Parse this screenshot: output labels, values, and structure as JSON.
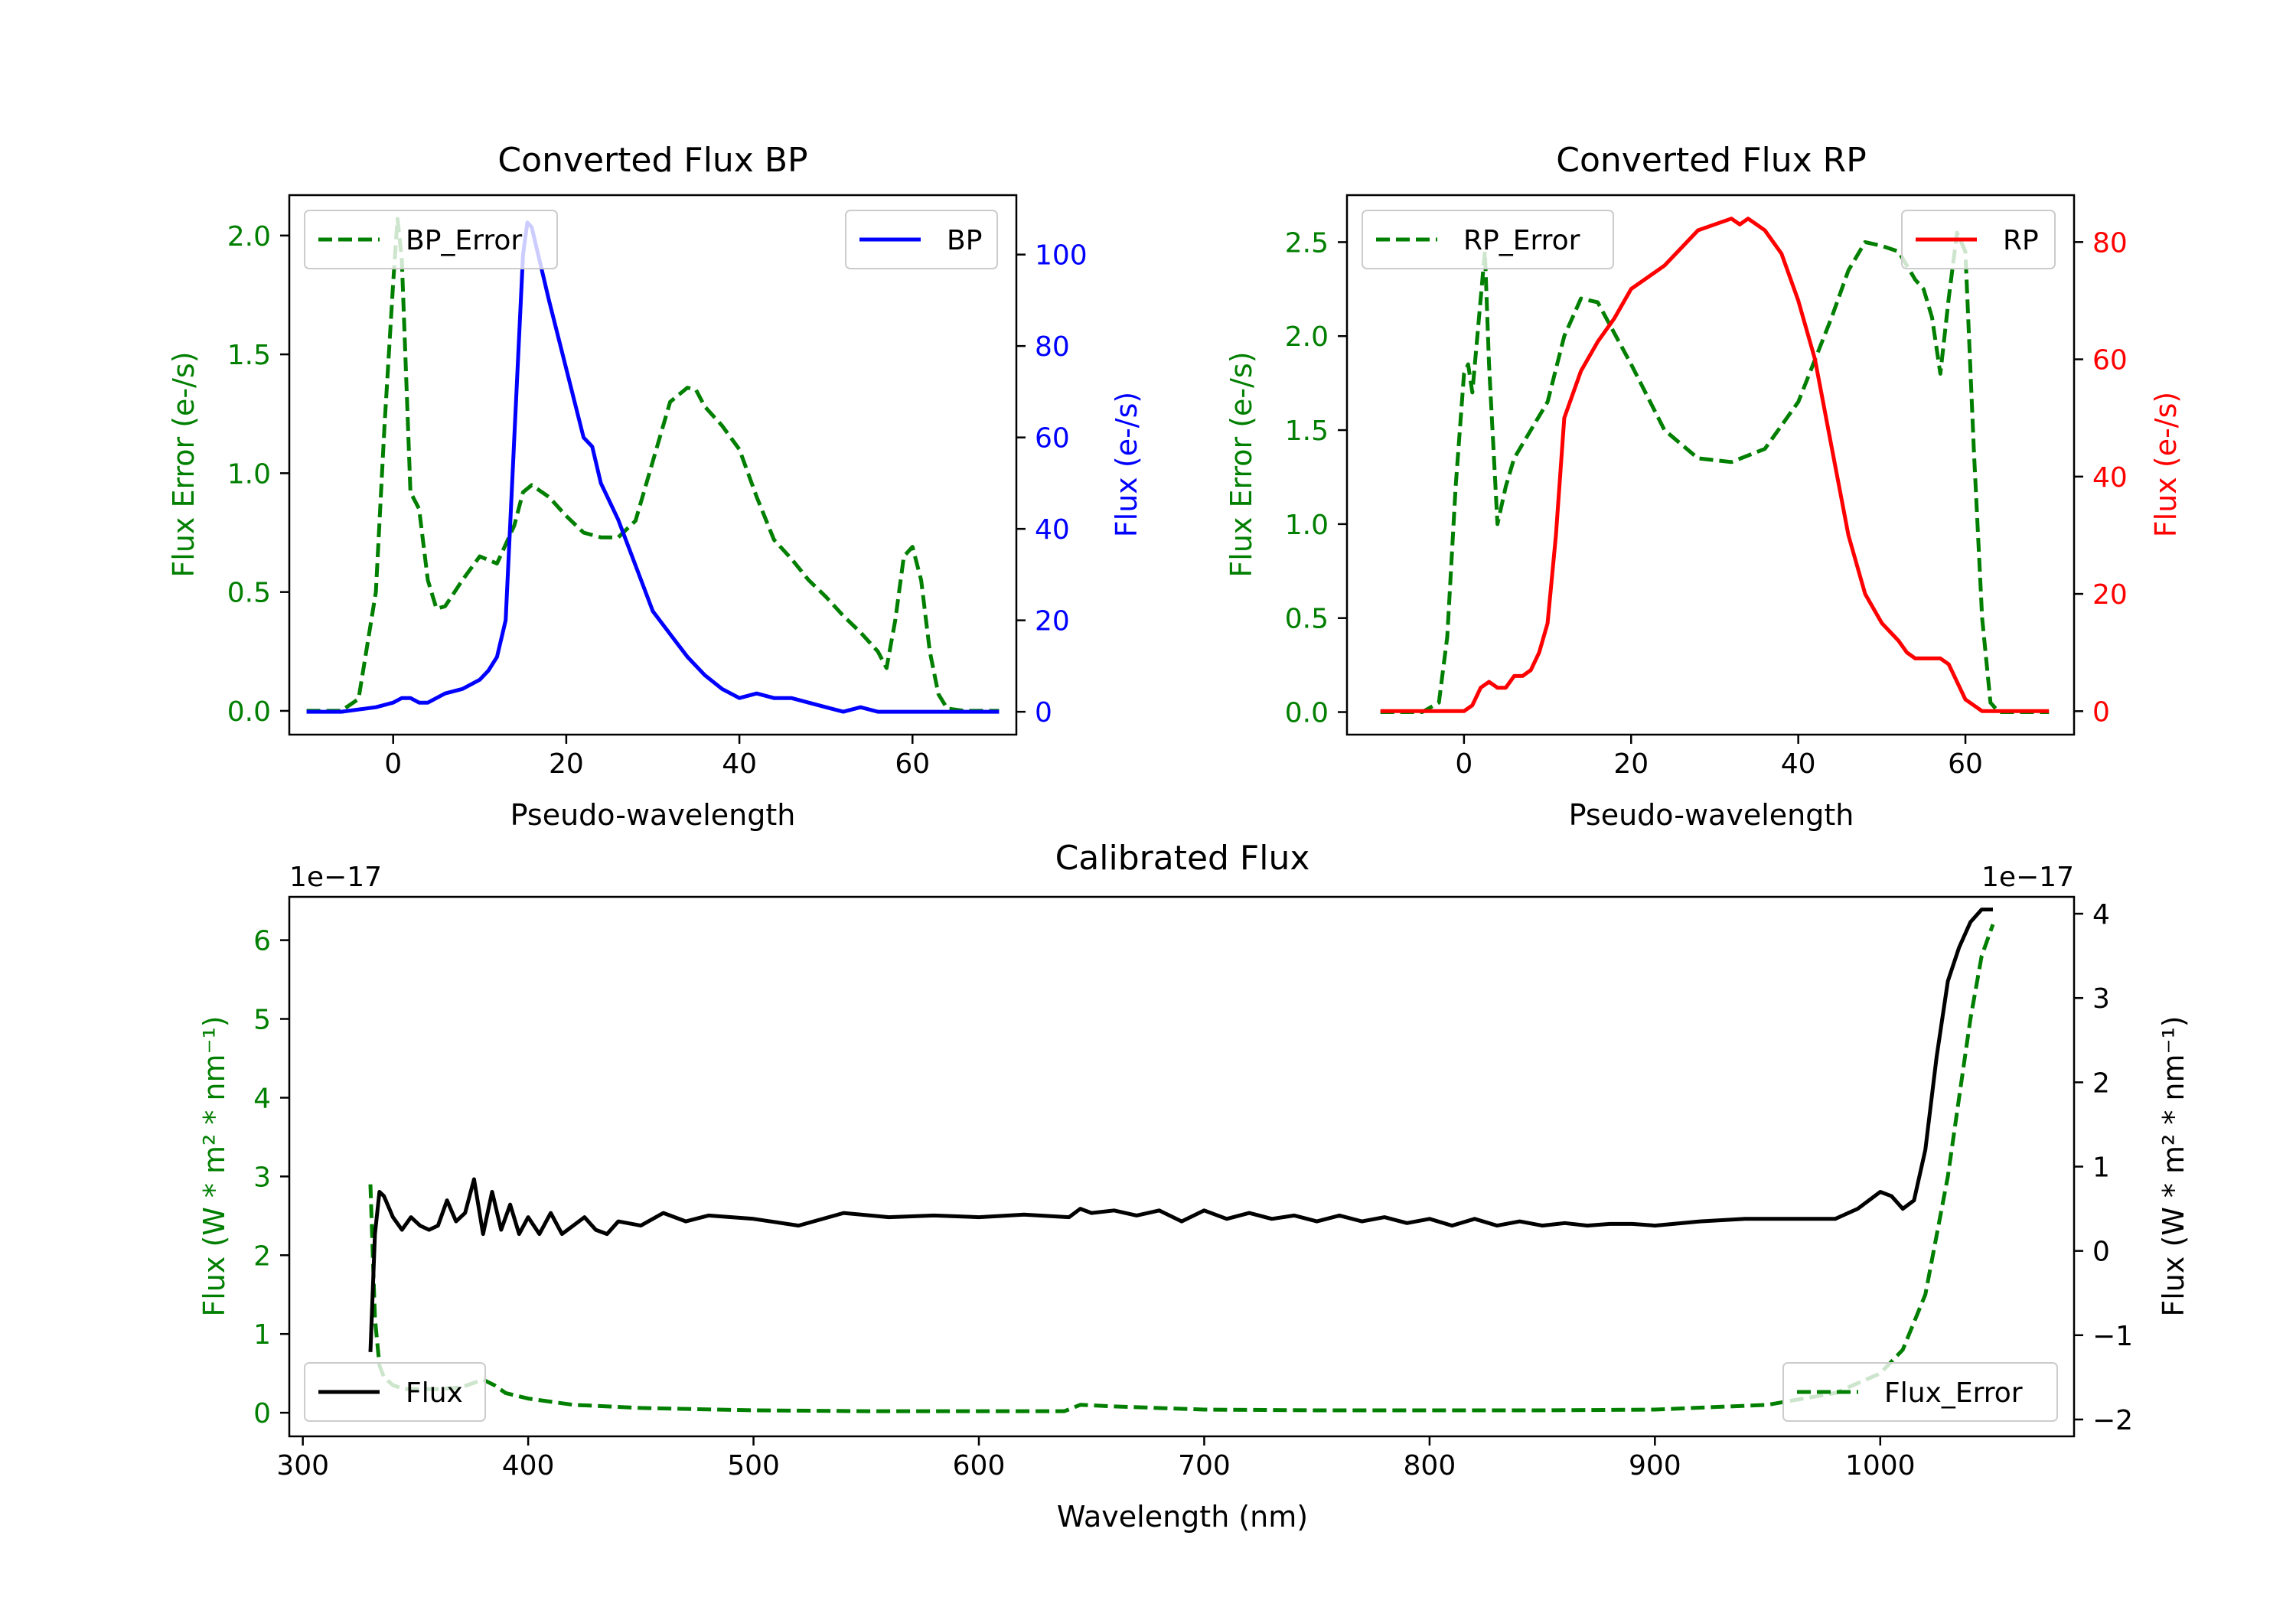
{
  "colors": {
    "green": "#007f00",
    "blue": "#0000ff",
    "red": "#ff0000",
    "black": "#000000"
  },
  "chart_data": [
    {
      "id": "bp",
      "type": "line",
      "title": "Converted Flux BP",
      "xlabel": "Pseudo-wavelength",
      "ylabel_left": "Flux Error (e-/s)",
      "ylabel_right": "Flux (e-/s)",
      "xlim": [
        -12,
        72
      ],
      "ylim_left": [
        -0.1,
        2.17
      ],
      "ylim_right": [
        -5,
        113
      ],
      "xticks": [
        0,
        20,
        40,
        60
      ],
      "yticks_left": [
        0.0,
        0.5,
        1.0,
        1.5,
        2.0
      ],
      "yticks_left_labels": [
        "0.0",
        "0.5",
        "1.0",
        "1.5",
        "2.0"
      ],
      "yticks_right": [
        0,
        20,
        40,
        60,
        80,
        100
      ],
      "legend_left": "BP_Error",
      "legend_right": "BP",
      "series": [
        {
          "name": "BP_Error",
          "axis": "left",
          "color": "#007f00",
          "dash": true,
          "x": [
            -10,
            -6,
            -4,
            -2,
            -1,
            0,
            0.5,
            1,
            2,
            3,
            4,
            5,
            6,
            8,
            10,
            12,
            14,
            15,
            16,
            18,
            20,
            22,
            24,
            26,
            28,
            30,
            32,
            34,
            35,
            36,
            38,
            40,
            42,
            44,
            46,
            48,
            50,
            52,
            54,
            56,
            57,
            58,
            59,
            60,
            61,
            62,
            63,
            64,
            66,
            68,
            70
          ],
          "y": [
            0.0,
            0.0,
            0.05,
            0.5,
            1.2,
            1.8,
            2.07,
            1.9,
            0.92,
            0.85,
            0.55,
            0.43,
            0.44,
            0.55,
            0.65,
            0.62,
            0.78,
            0.92,
            0.95,
            0.9,
            0.82,
            0.75,
            0.73,
            0.73,
            0.8,
            1.05,
            1.3,
            1.36,
            1.35,
            1.28,
            1.2,
            1.1,
            0.9,
            0.72,
            0.64,
            0.55,
            0.48,
            0.4,
            0.33,
            0.25,
            0.18,
            0.38,
            0.65,
            0.69,
            0.55,
            0.25,
            0.07,
            0.01,
            0.0,
            0.0,
            0.0
          ]
        },
        {
          "name": "BP",
          "axis": "right",
          "color": "#0000ff",
          "dash": false,
          "x": [
            -10,
            -6,
            -2,
            0,
            1,
            2,
            3,
            4,
            6,
            8,
            10,
            11,
            12,
            13,
            14,
            15,
            15.5,
            16,
            17,
            18,
            20,
            22,
            23,
            24,
            26,
            28,
            30,
            32,
            34,
            36,
            38,
            40,
            42,
            44,
            46,
            48,
            50,
            52,
            54,
            56,
            58,
            60,
            62,
            64,
            66,
            68,
            70
          ],
          "y": [
            0,
            0,
            1,
            2,
            3,
            3,
            2,
            2,
            4,
            5,
            7,
            9,
            12,
            20,
            60,
            100,
            107,
            106,
            98,
            90,
            75,
            60,
            58,
            50,
            42,
            32,
            22,
            17,
            12,
            8,
            5,
            3,
            4,
            3,
            3,
            2,
            1,
            0,
            1,
            0,
            0,
            0,
            0,
            0,
            0,
            0,
            0
          ]
        }
      ]
    },
    {
      "id": "rp",
      "type": "line",
      "title": "Converted Flux RP",
      "xlabel": "Pseudo-wavelength",
      "ylabel_left": "Flux Error (e-/s)",
      "ylabel_right": "Flux (e-/s)",
      "xlim": [
        -14,
        73
      ],
      "ylim_left": [
        -0.12,
        2.75
      ],
      "ylim_right": [
        -4,
        88
      ],
      "xticks": [
        0,
        20,
        40,
        60
      ],
      "yticks_left": [
        0.0,
        0.5,
        1.0,
        1.5,
        2.0,
        2.5
      ],
      "yticks_left_labels": [
        "0.0",
        "0.5",
        "1.0",
        "1.5",
        "2.0",
        "2.5"
      ],
      "yticks_right": [
        0,
        20,
        40,
        60,
        80
      ],
      "legend_left": "RP_Error",
      "legend_right": "RP",
      "series": [
        {
          "name": "RP_Error",
          "axis": "left",
          "color": "#007f00",
          "dash": true,
          "x": [
            -10,
            -5,
            -3,
            -2,
            -1,
            0,
            0.5,
            1,
            2,
            2.5,
            3,
            4,
            5,
            6,
            8,
            10,
            12,
            14,
            16,
            20,
            24,
            28,
            32,
            36,
            40,
            44,
            46,
            48,
            50,
            52,
            54,
            55,
            56,
            57,
            58,
            59,
            60,
            61,
            62,
            63,
            64,
            66,
            68,
            70
          ],
          "y": [
            0.0,
            0.0,
            0.05,
            0.4,
            1.2,
            1.8,
            1.85,
            1.7,
            2.2,
            2.45,
            1.85,
            1.0,
            1.2,
            1.35,
            1.5,
            1.65,
            2.0,
            2.2,
            2.18,
            1.85,
            1.5,
            1.35,
            1.33,
            1.4,
            1.65,
            2.1,
            2.35,
            2.5,
            2.48,
            2.45,
            2.3,
            2.25,
            2.1,
            1.8,
            2.2,
            2.55,
            2.45,
            1.4,
            0.5,
            0.05,
            0.0,
            0.0,
            0.0,
            0.0
          ]
        },
        {
          "name": "RP",
          "axis": "right",
          "color": "#ff0000",
          "dash": false,
          "x": [
            -10,
            -4,
            -2,
            0,
            1,
            2,
            3,
            4,
            5,
            6,
            7,
            8,
            9,
            10,
            11,
            12,
            14,
            16,
            18,
            20,
            22,
            24,
            26,
            28,
            30,
            32,
            33,
            34,
            35,
            36,
            38,
            40,
            42,
            44,
            46,
            48,
            50,
            52,
            53,
            54,
            55,
            56,
            57,
            58,
            60,
            62,
            64,
            66,
            70
          ],
          "y": [
            0,
            0,
            0,
            0,
            1,
            4,
            5,
            4,
            4,
            6,
            6,
            7,
            10,
            15,
            30,
            50,
            58,
            63,
            67,
            72,
            74,
            76,
            79,
            82,
            83,
            84,
            83,
            84,
            83,
            82,
            78,
            70,
            60,
            45,
            30,
            20,
            15,
            12,
            10,
            9,
            9,
            9,
            9,
            8,
            2,
            0,
            0,
            0,
            0
          ]
        }
      ]
    },
    {
      "id": "calib",
      "type": "line",
      "title": "Calibrated Flux",
      "xlabel": "Wavelength (nm)",
      "ylabel_left": "Flux (W * m² * nm⁻¹)",
      "ylabel_right": "Flux (W * m² * nm⁻¹)",
      "offset_left": "1e−17",
      "offset_right": "1e−17",
      "xlim": [
        294,
        1086
      ],
      "ylim_left": [
        -0.3,
        6.55
      ],
      "ylim_right": [
        -2.2,
        4.2
      ],
      "xticks": [
        300,
        400,
        500,
        600,
        700,
        800,
        900,
        1000
      ],
      "yticks_left": [
        0,
        1,
        2,
        3,
        4,
        5,
        6
      ],
      "yticks_right": [
        -2,
        -1,
        0,
        1,
        2,
        3,
        4
      ],
      "yticks_right_labels": [
        "−2",
        "−1",
        "0",
        "1",
        "2",
        "3",
        "4"
      ],
      "legend_left": "Flux",
      "legend_right": "Flux_Error",
      "series": [
        {
          "name": "Flux_Error",
          "axis": "left",
          "color": "#007f00",
          "dash": true,
          "x": [
            330,
            332,
            334,
            336,
            340,
            345,
            350,
            360,
            370,
            380,
            385,
            390,
            400,
            420,
            450,
            500,
            550,
            600,
            638,
            645,
            660,
            700,
            750,
            800,
            850,
            900,
            950,
            980,
            1000,
            1010,
            1020,
            1030,
            1035,
            1040,
            1045,
            1050
          ],
          "y": [
            2.9,
            1.2,
            0.6,
            0.45,
            0.35,
            0.3,
            0.3,
            0.3,
            0.32,
            0.42,
            0.35,
            0.25,
            0.18,
            0.1,
            0.06,
            0.03,
            0.02,
            0.02,
            0.02,
            0.1,
            0.08,
            0.04,
            0.03,
            0.03,
            0.03,
            0.04,
            0.1,
            0.25,
            0.5,
            0.8,
            1.5,
            3.0,
            4.0,
            5.0,
            5.8,
            6.2
          ]
        },
        {
          "name": "Flux",
          "axis": "right",
          "color": "#000000",
          "dash": false,
          "x": [
            330,
            332,
            334,
            336,
            340,
            344,
            348,
            352,
            356,
            360,
            364,
            368,
            372,
            376,
            380,
            384,
            388,
            392,
            396,
            400,
            405,
            410,
            415,
            420,
            425,
            430,
            435,
            440,
            450,
            460,
            470,
            480,
            500,
            520,
            540,
            560,
            580,
            600,
            620,
            640,
            645,
            650,
            660,
            670,
            680,
            690,
            700,
            710,
            720,
            730,
            740,
            750,
            760,
            770,
            780,
            790,
            800,
            810,
            820,
            830,
            840,
            850,
            860,
            870,
            880,
            890,
            900,
            920,
            940,
            960,
            980,
            990,
            1000,
            1005,
            1010,
            1015,
            1020,
            1025,
            1030,
            1035,
            1040,
            1045,
            1050
          ],
          "y": [
            -1.2,
            0.2,
            0.7,
            0.65,
            0.4,
            0.25,
            0.4,
            0.3,
            0.25,
            0.3,
            0.6,
            0.35,
            0.45,
            0.85,
            0.2,
            0.7,
            0.25,
            0.55,
            0.2,
            0.4,
            0.2,
            0.45,
            0.2,
            0.3,
            0.4,
            0.25,
            0.2,
            0.35,
            0.3,
            0.45,
            0.35,
            0.42,
            0.38,
            0.3,
            0.45,
            0.4,
            0.42,
            0.4,
            0.43,
            0.4,
            0.5,
            0.45,
            0.48,
            0.42,
            0.48,
            0.35,
            0.48,
            0.38,
            0.45,
            0.38,
            0.42,
            0.35,
            0.42,
            0.35,
            0.4,
            0.33,
            0.38,
            0.3,
            0.38,
            0.3,
            0.35,
            0.3,
            0.33,
            0.3,
            0.32,
            0.32,
            0.3,
            0.35,
            0.38,
            0.38,
            0.38,
            0.5,
            0.7,
            0.65,
            0.5,
            0.6,
            1.2,
            2.3,
            3.2,
            3.6,
            3.9,
            4.05,
            4.05
          ]
        }
      ]
    }
  ]
}
